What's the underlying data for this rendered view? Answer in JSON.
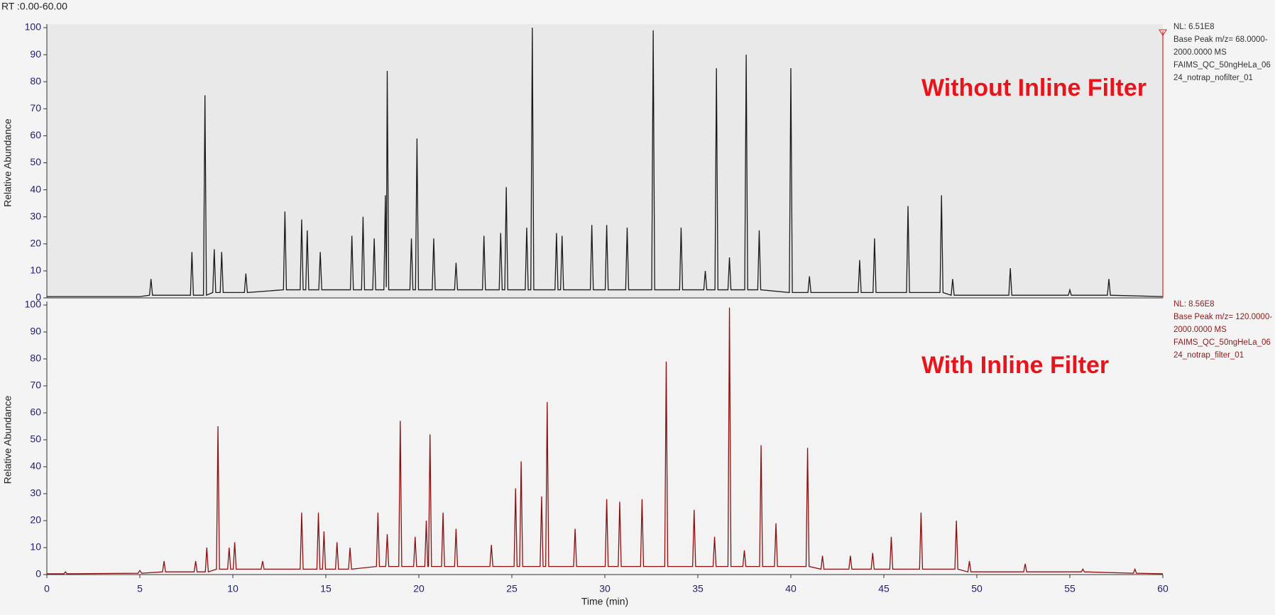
{
  "header": "RT :0.00-60.00",
  "chart_data": [
    {
      "type": "line",
      "ylabel": "Relative Abundance",
      "annotation": "Without Inline Filter",
      "info": [
        "NL: 6.51E8",
        "Base Peak m/z= 68.0000-",
        "2000.0000 MS",
        "FAIMS_QC_50ngHeLa_06",
        "24_notrap_nofilter_01"
      ],
      "color": "#1a1a1a",
      "xlim": [
        0,
        60
      ],
      "ylim": [
        0,
        100
      ],
      "yticks": [
        0,
        10,
        20,
        30,
        40,
        50,
        60,
        70,
        80,
        90,
        100
      ],
      "x": [
        0,
        5.0,
        5.52,
        5.6,
        5.68,
        7.72,
        7.8,
        7.88,
        8.42,
        8.5,
        8.58,
        8.92,
        9.0,
        9.08,
        9.32,
        9.4,
        9.48,
        10.62,
        10.7,
        10.78,
        12.72,
        12.8,
        12.88,
        13.62,
        13.7,
        13.78,
        13.92,
        14.0,
        14.08,
        14.62,
        14.7,
        14.78,
        16.32,
        16.4,
        16.48,
        16.92,
        17.0,
        17.08,
        17.52,
        17.6,
        17.68,
        18.12,
        18.2,
        18.25,
        18.3,
        18.38,
        19.52,
        19.6,
        19.68,
        19.82,
        19.9,
        19.98,
        20.72,
        20.8,
        20.88,
        21.92,
        22.0,
        22.08,
        23.42,
        23.5,
        23.58,
        24.32,
        24.4,
        24.48,
        24.62,
        24.7,
        24.78,
        25.72,
        25.8,
        25.88,
        26.02,
        26.1,
        26.18,
        27.32,
        27.4,
        27.48,
        27.62,
        27.7,
        27.78,
        29.22,
        29.3,
        29.38,
        30.02,
        30.1,
        30.18,
        31.12,
        31.2,
        31.28,
        32.52,
        32.6,
        32.68,
        34.02,
        34.1,
        34.18,
        35.32,
        35.4,
        35.48,
        35.92,
        36.0,
        36.08,
        36.62,
        36.7,
        36.78,
        37.52,
        37.6,
        37.68,
        38.22,
        38.3,
        38.38,
        39.92,
        40.0,
        40.08,
        40.92,
        41.0,
        41.08,
        43.62,
        43.7,
        43.78,
        44.42,
        44.5,
        44.58,
        46.22,
        46.3,
        46.38,
        48.02,
        48.1,
        48.18,
        48.62,
        48.7,
        48.78,
        51.72,
        51.8,
        51.88,
        54.92,
        55.0,
        55.08,
        57.02,
        57.1,
        57.18,
        60
      ],
      "values": [
        0.5,
        0.5,
        1,
        7,
        1,
        1,
        17,
        1,
        1,
        75,
        1,
        2,
        18,
        2,
        2,
        17,
        2,
        2,
        9,
        2,
        3,
        32,
        3,
        3,
        29,
        3,
        3,
        25,
        3,
        3,
        17,
        3,
        3,
        23,
        3,
        3,
        30,
        3,
        3,
        22,
        3,
        3,
        38,
        4,
        84,
        3,
        3,
        22,
        3,
        3,
        59,
        3,
        3,
        22,
        3,
        3,
        13,
        3,
        3,
        23,
        3,
        3,
        24,
        3,
        3,
        41,
        3,
        3,
        26,
        3,
        3,
        100,
        3,
        3,
        24,
        3,
        3,
        23,
        3,
        3,
        27,
        3,
        3,
        27,
        3,
        3,
        26,
        3,
        3,
        99,
        3,
        3,
        26,
        3,
        3,
        10,
        3,
        3,
        85,
        3,
        3,
        15,
        3,
        3,
        90,
        3,
        3,
        25,
        3,
        2,
        85,
        2,
        2,
        8,
        2,
        2,
        14,
        2,
        2,
        22,
        2,
        2,
        34,
        2,
        2,
        38,
        2,
        1,
        7,
        1,
        1,
        11,
        1,
        1,
        3,
        1,
        1,
        7,
        1,
        0.5
      ]
    },
    {
      "type": "line",
      "ylabel": "Relative Abundance",
      "xlabel": "Time (min)",
      "annotation": "With Inline Filter",
      "info": [
        "NL: 8.56E8",
        "Base Peak m/z= 120.0000-",
        "2000.0000 MS",
        "FAIMS_QC_50ngHeLa_06",
        "24_notrap_filter_01"
      ],
      "color": "#8b0f0f",
      "xlim": [
        0,
        60
      ],
      "ylim": [
        0,
        100
      ],
      "yticks": [
        0,
        10,
        20,
        30,
        40,
        50,
        60,
        70,
        80,
        90,
        100
      ],
      "xticks": [
        0,
        5,
        10,
        15,
        20,
        25,
        30,
        35,
        40,
        45,
        50,
        55,
        60
      ],
      "x": [
        0,
        0.92,
        1.0,
        1.08,
        4.9,
        5.0,
        5.1,
        6.22,
        6.3,
        6.38,
        7.92,
        8.0,
        8.08,
        8.52,
        8.6,
        8.68,
        9.12,
        9.2,
        9.28,
        9.72,
        9.8,
        9.88,
        10.02,
        10.1,
        10.18,
        11.52,
        11.6,
        11.68,
        13.62,
        13.7,
        13.78,
        14.52,
        14.6,
        14.68,
        14.82,
        14.9,
        14.98,
        15.52,
        15.6,
        15.68,
        16.22,
        16.3,
        16.38,
        17.72,
        17.8,
        17.88,
        18.22,
        18.3,
        18.38,
        18.92,
        19.0,
        19.08,
        19.72,
        19.8,
        19.88,
        20.32,
        20.4,
        20.48,
        20.52,
        20.6,
        20.68,
        21.22,
        21.3,
        21.38,
        21.92,
        22.0,
        22.08,
        23.82,
        23.9,
        23.98,
        25.12,
        25.2,
        25.28,
        25.42,
        25.5,
        25.58,
        26.52,
        26.6,
        26.68,
        26.82,
        26.9,
        26.98,
        28.32,
        28.4,
        28.48,
        30.02,
        30.1,
        30.18,
        30.72,
        30.8,
        30.88,
        31.92,
        32.0,
        32.08,
        33.22,
        33.3,
        33.38,
        34.72,
        34.8,
        34.88,
        35.82,
        35.9,
        35.98,
        36.62,
        36.7,
        36.78,
        37.42,
        37.5,
        37.58,
        38.32,
        38.4,
        38.48,
        39.12,
        39.2,
        39.28,
        40.82,
        40.9,
        40.98,
        41.62,
        41.7,
        41.78,
        43.12,
        43.2,
        43.28,
        44.32,
        44.4,
        44.48,
        45.32,
        45.4,
        45.48,
        46.92,
        47.0,
        47.08,
        48.82,
        48.9,
        48.98,
        49.52,
        49.6,
        49.68,
        52.52,
        52.6,
        52.68,
        55.62,
        55.7,
        55.78,
        58.42,
        58.5,
        58.58,
        60
      ],
      "values": [
        0.3,
        0.3,
        1,
        0.3,
        0.5,
        1.5,
        0.5,
        1,
        5,
        1,
        1,
        5,
        1,
        1,
        10,
        1,
        2,
        55,
        2,
        2,
        10,
        2,
        2,
        12,
        2,
        2,
        5,
        2,
        2,
        23,
        2,
        2,
        23,
        2,
        2,
        16,
        2,
        2,
        12,
        2,
        2,
        10,
        2,
        3,
        23,
        3,
        3,
        15,
        3,
        3,
        57,
        3,
        3,
        14,
        3,
        3,
        20,
        3,
        3,
        52,
        3,
        3,
        23,
        3,
        3,
        17,
        3,
        3,
        11,
        3,
        3,
        32,
        3,
        3,
        42,
        3,
        3,
        29,
        3,
        3,
        64,
        3,
        3,
        17,
        3,
        3,
        28,
        3,
        3,
        27,
        3,
        3,
        28,
        3,
        3,
        79,
        3,
        3,
        24,
        3,
        3,
        14,
        3,
        3,
        99,
        3,
        3,
        9,
        3,
        3,
        48,
        3,
        3,
        19,
        3,
        3,
        47,
        3,
        2,
        7,
        2,
        2,
        7,
        2,
        2,
        8,
        2,
        2,
        14,
        2,
        2,
        23,
        2,
        2,
        20,
        2,
        1,
        5,
        1,
        1,
        4,
        1,
        1,
        2,
        1,
        0.5,
        2,
        0.5,
        0.3
      ]
    }
  ]
}
